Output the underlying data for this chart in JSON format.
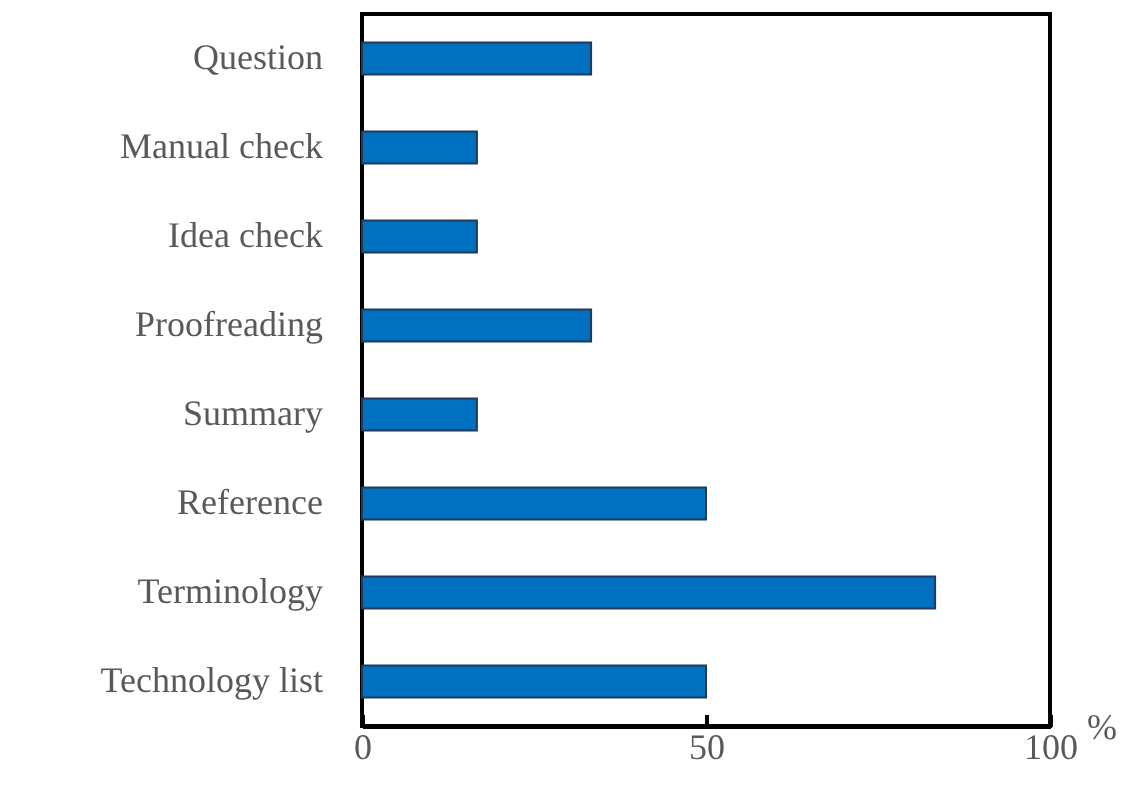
{
  "chart_data": {
    "type": "bar",
    "orientation": "horizontal",
    "xlabel": "%",
    "categories": [
      "Question",
      "Manual check",
      "Idea check",
      "Proofreading",
      "Summary",
      "Reference",
      "Terminology",
      "Technology list"
    ],
    "values": [
      33.3,
      16.7,
      16.7,
      33.3,
      16.7,
      50,
      83.3,
      50
    ],
    "color": "#0070c0",
    "xlim": [
      0,
      100
    ],
    "xticks": [
      0,
      50,
      100
    ]
  }
}
